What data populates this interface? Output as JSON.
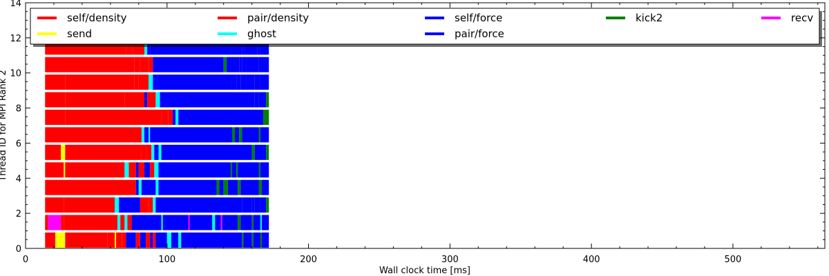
{
  "chart_data": {
    "type": "bar",
    "xlabel": "Wall clock time [ms]",
    "ylabel": "Thread ID for MPI Rank 2",
    "xlim": [
      0,
      565
    ],
    "ylim": [
      0,
      14
    ],
    "xticks": [
      0,
      100,
      200,
      300,
      400,
      500
    ],
    "yticks": [
      0,
      2,
      4,
      6,
      8,
      10,
      12,
      14
    ],
    "grid": false,
    "legend_position": "top",
    "legend": [
      {
        "name": "self/density",
        "color": "#ff0000"
      },
      {
        "name": "pair/density",
        "color": "#ff0000"
      },
      {
        "name": "self/force",
        "color": "#0000ff"
      },
      {
        "name": "kick2",
        "color": "#008000"
      },
      {
        "name": "recv",
        "color": "#ff00ff"
      },
      {
        "name": "send",
        "color": "#ffff00"
      },
      {
        "name": "ghost",
        "color": "#00ffff"
      },
      {
        "name": "pair/force",
        "color": "#0000ff"
      }
    ],
    "bars": [
      {
        "thread": 0,
        "segments": [
          [
            13.8,
            21,
            "r"
          ],
          [
            21,
            26,
            "y"
          ],
          [
            26,
            28,
            "y"
          ],
          [
            28,
            58,
            "r"
          ],
          [
            58,
            63,
            "r"
          ],
          [
            63,
            64,
            "y"
          ],
          [
            64,
            68,
            "r"
          ],
          [
            68,
            71,
            "r"
          ],
          [
            71,
            78,
            "b"
          ],
          [
            78,
            81,
            "r"
          ],
          [
            81,
            85,
            "b"
          ],
          [
            85,
            88,
            "r"
          ],
          [
            88,
            90,
            "b"
          ],
          [
            90,
            92,
            "r"
          ],
          [
            92,
            100,
            "b"
          ],
          [
            100,
            103,
            "c"
          ],
          [
            103,
            108,
            "b"
          ],
          [
            108,
            110,
            "c"
          ],
          [
            110,
            153,
            "b"
          ],
          [
            153,
            154,
            "g"
          ],
          [
            154,
            160,
            "b"
          ],
          [
            160,
            161,
            "g"
          ],
          [
            161,
            166,
            "b"
          ],
          [
            166,
            167,
            "g"
          ],
          [
            167,
            172,
            "b"
          ]
        ]
      },
      {
        "thread": 1,
        "segments": [
          [
            13.8,
            16,
            "r"
          ],
          [
            16,
            25,
            "m"
          ],
          [
            25,
            27,
            "r"
          ],
          [
            27,
            65,
            "r"
          ],
          [
            65,
            67,
            "c"
          ],
          [
            67,
            70,
            "r"
          ],
          [
            70,
            72,
            "c"
          ],
          [
            72,
            75,
            "r"
          ],
          [
            75,
            96,
            "b"
          ],
          [
            96,
            97,
            "c"
          ],
          [
            97,
            115,
            "b"
          ],
          [
            115,
            116,
            "m"
          ],
          [
            116,
            132,
            "b"
          ],
          [
            132,
            134,
            "c"
          ],
          [
            134,
            138,
            "b"
          ],
          [
            138,
            139,
            "m"
          ],
          [
            139,
            150,
            "b"
          ],
          [
            150,
            152,
            "g"
          ],
          [
            152,
            160,
            "b"
          ],
          [
            160,
            161,
            "g"
          ],
          [
            161,
            166,
            "b"
          ],
          [
            166,
            167,
            "c"
          ],
          [
            167,
            172,
            "b"
          ]
        ]
      },
      {
        "thread": 2,
        "segments": [
          [
            13.8,
            27,
            "r"
          ],
          [
            27,
            63,
            "r"
          ],
          [
            63,
            66,
            "c"
          ],
          [
            66,
            81,
            "b"
          ],
          [
            81,
            87,
            "r"
          ],
          [
            87,
            90,
            "r"
          ],
          [
            90,
            92,
            "c"
          ],
          [
            92,
            153,
            "b"
          ],
          [
            153,
            160,
            "b"
          ],
          [
            160,
            162,
            "b"
          ],
          [
            162,
            166,
            "b"
          ],
          [
            166,
            170,
            "b"
          ],
          [
            170,
            172,
            "g"
          ]
        ]
      },
      {
        "thread": 3,
        "segments": [
          [
            13.8,
            78,
            "r"
          ],
          [
            78,
            80,
            "b"
          ],
          [
            80,
            82,
            "c"
          ],
          [
            82,
            92,
            "b"
          ],
          [
            92,
            94,
            "c"
          ],
          [
            94,
            135,
            "b"
          ],
          [
            135,
            137,
            "g"
          ],
          [
            137,
            140,
            "b"
          ],
          [
            140,
            143,
            "g"
          ],
          [
            143,
            150,
            "b"
          ],
          [
            150,
            152,
            "g"
          ],
          [
            152,
            165,
            "b"
          ],
          [
            165,
            167,
            "g"
          ],
          [
            167,
            172,
            "b"
          ]
        ]
      },
      {
        "thread": 4,
        "segments": [
          [
            13.8,
            27,
            "r"
          ],
          [
            27,
            28,
            "y"
          ],
          [
            28,
            70,
            "r"
          ],
          [
            70,
            73,
            "c"
          ],
          [
            73,
            78,
            "r"
          ],
          [
            78,
            80,
            "b"
          ],
          [
            80,
            84,
            "r"
          ],
          [
            84,
            88,
            "b"
          ],
          [
            88,
            91,
            "r"
          ],
          [
            91,
            94,
            "c"
          ],
          [
            94,
            145,
            "b"
          ],
          [
            145,
            146,
            "g"
          ],
          [
            146,
            149,
            "b"
          ],
          [
            149,
            150,
            "g"
          ],
          [
            150,
            165,
            "b"
          ],
          [
            165,
            166,
            "g"
          ],
          [
            166,
            172,
            "b"
          ]
        ]
      },
      {
        "thread": 5,
        "segments": [
          [
            13.8,
            25,
            "r"
          ],
          [
            25,
            28,
            "y"
          ],
          [
            28,
            82,
            "r"
          ],
          [
            82,
            85,
            "r"
          ],
          [
            85,
            89,
            "r"
          ],
          [
            89,
            91,
            "c"
          ],
          [
            91,
            94,
            "b"
          ],
          [
            94,
            96,
            "c"
          ],
          [
            96,
            157,
            "b"
          ],
          [
            157,
            160,
            "b"
          ],
          [
            160,
            162,
            "g"
          ],
          [
            162,
            168,
            "b"
          ],
          [
            168,
            170,
            "b"
          ],
          [
            170,
            172,
            "g"
          ]
        ]
      },
      {
        "thread": 6,
        "segments": [
          [
            13.8,
            82,
            "r"
          ],
          [
            82,
            84,
            "c"
          ],
          [
            84,
            87,
            "b"
          ],
          [
            87,
            88,
            "c"
          ],
          [
            88,
            146,
            "b"
          ],
          [
            146,
            148,
            "g"
          ],
          [
            148,
            151,
            "b"
          ],
          [
            151,
            153,
            "g"
          ],
          [
            153,
            165,
            "b"
          ],
          [
            165,
            166,
            "g"
          ],
          [
            166,
            172,
            "b"
          ]
        ]
      },
      {
        "thread": 7,
        "segments": [
          [
            13.8,
            28,
            "r"
          ],
          [
            28,
            96,
            "r"
          ],
          [
            96,
            101,
            "r"
          ],
          [
            101,
            104,
            "r"
          ],
          [
            104,
            106,
            "b"
          ],
          [
            106,
            108,
            "c"
          ],
          [
            108,
            168,
            "b"
          ],
          [
            168,
            172,
            "g"
          ]
        ]
      },
      {
        "thread": 8,
        "segments": [
          [
            13.8,
            28,
            "r"
          ],
          [
            28,
            70,
            "r"
          ],
          [
            70,
            84,
            "r"
          ],
          [
            84,
            86,
            "b"
          ],
          [
            86,
            92,
            "r"
          ],
          [
            92,
            95,
            "c"
          ],
          [
            95,
            157,
            "b"
          ],
          [
            157,
            162,
            "b"
          ],
          [
            162,
            165,
            "b"
          ],
          [
            165,
            168,
            "b"
          ],
          [
            168,
            170,
            "b"
          ],
          [
            170,
            172,
            "g"
          ]
        ]
      },
      {
        "thread": 9,
        "segments": [
          [
            13.8,
            28,
            "r"
          ],
          [
            28,
            77,
            "r"
          ],
          [
            77,
            80,
            "r"
          ],
          [
            80,
            84,
            "r"
          ],
          [
            84,
            87,
            "r"
          ],
          [
            87,
            90,
            "c"
          ],
          [
            90,
            93,
            "b"
          ],
          [
            93,
            146,
            "b"
          ],
          [
            146,
            149,
            "b"
          ],
          [
            149,
            152,
            "b"
          ],
          [
            152,
            156,
            "b"
          ],
          [
            156,
            162,
            "b"
          ],
          [
            162,
            166,
            "b"
          ],
          [
            166,
            172,
            "b"
          ]
        ]
      },
      {
        "thread": 10,
        "segments": [
          [
            13.8,
            77,
            "r"
          ],
          [
            77,
            81,
            "r"
          ],
          [
            81,
            84,
            "r"
          ],
          [
            84,
            87,
            "r"
          ],
          [
            87,
            90,
            "r"
          ],
          [
            90,
            140,
            "b"
          ],
          [
            140,
            142,
            "g"
          ],
          [
            142,
            151,
            "b"
          ],
          [
            151,
            153,
            "b"
          ],
          [
            153,
            156,
            "b"
          ],
          [
            156,
            165,
            "b"
          ],
          [
            165,
            167,
            "b"
          ],
          [
            167,
            172,
            "b"
          ]
        ]
      },
      {
        "thread": 11,
        "segments": [
          [
            13.8,
            71,
            "r"
          ],
          [
            71,
            74,
            "r"
          ],
          [
            74,
            76,
            "r"
          ],
          [
            76,
            84,
            "r"
          ],
          [
            84,
            86,
            "c"
          ],
          [
            86,
            88,
            "b"
          ],
          [
            88,
            93,
            "b"
          ],
          [
            93,
            146,
            "b"
          ],
          [
            146,
            153,
            "b"
          ],
          [
            153,
            155,
            "b"
          ],
          [
            155,
            164,
            "b"
          ],
          [
            164,
            166,
            "b"
          ],
          [
            166,
            172,
            "b"
          ]
        ]
      }
    ]
  }
}
